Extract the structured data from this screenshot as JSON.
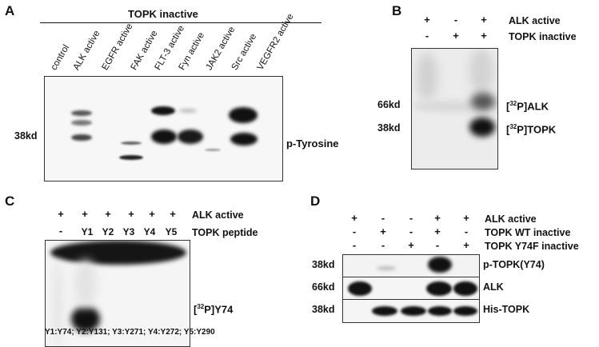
{
  "panelA": {
    "letter": "A",
    "header": "TOPK inactive",
    "lanes": [
      "control",
      "ALK active",
      "EGFR active",
      "FAK active",
      "FLT-3 active",
      "Fyn active",
      "JAK2 active",
      "Src active",
      "VEGFR2 active"
    ],
    "marker": "38kd",
    "blot_label": "p-Tyrosine"
  },
  "panelB": {
    "letter": "B",
    "rows": [
      {
        "label": "ALK active",
        "signs": [
          "+",
          "-",
          "+"
        ]
      },
      {
        "label": "TOPK inactive",
        "signs": [
          "-",
          "+",
          "+"
        ]
      }
    ],
    "markers": [
      "66kd",
      "38kd"
    ],
    "band_labels": [
      {
        "sup": "32",
        "text": "P]ALK"
      },
      {
        "sup": "32",
        "text": "P]TOPK"
      }
    ]
  },
  "panelC": {
    "letter": "C",
    "rows": [
      {
        "label": "ALK active",
        "signs": [
          "+",
          "+",
          "+",
          "+",
          "+",
          "+"
        ]
      },
      {
        "label": "TOPK peptide",
        "signs": [
          "-",
          "Y1",
          "Y2",
          "Y3",
          "Y4",
          "Y5"
        ]
      }
    ],
    "band_label": {
      "sup": "32",
      "text": "P]Y74"
    },
    "footnote": "Y1:Y74; Y2:Y131; Y3:Y271; Y4:Y272; Y5:Y290"
  },
  "panelD": {
    "letter": "D",
    "rows": [
      {
        "label": "ALK active",
        "signs": [
          "+",
          "-",
          "-",
          "+",
          "+"
        ]
      },
      {
        "label": "TOPK WT inactive",
        "signs": [
          "-",
          "+",
          "-",
          "+",
          "-"
        ]
      },
      {
        "label": "TOPK Y74F inactive",
        "signs": [
          "-",
          "-",
          "+",
          "-",
          "+"
        ]
      }
    ],
    "blots": [
      {
        "marker": "38kd",
        "label": "p-TOPK(Y74)"
      },
      {
        "marker": "66kd",
        "label": "ALK"
      },
      {
        "marker": "38kd",
        "label": "His-TOPK"
      }
    ]
  },
  "colors": {
    "band": "#111111",
    "background": "#ffffff"
  }
}
